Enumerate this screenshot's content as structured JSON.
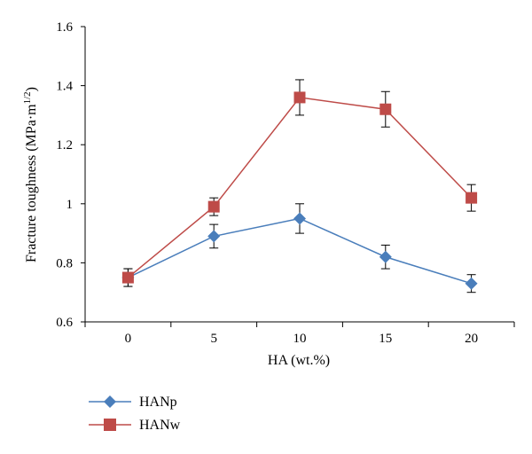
{
  "chart_data": {
    "type": "line",
    "xlabel": "HA (wt.%)",
    "ylabel_main": "Fracture toughness (MPa·m",
    "ylabel_sup": "1/2",
    "ylabel_close": ")",
    "x": [
      0,
      5,
      10,
      15,
      20
    ],
    "x_tick_labels": [
      "0",
      "5",
      "10",
      "15",
      "20"
    ],
    "ylim": [
      0.6,
      1.6
    ],
    "y_ticks": [
      0.6,
      0.8,
      1.0,
      1.2,
      1.4,
      1.6
    ],
    "y_tick_labels": [
      "0.6",
      "0.8",
      "1",
      "1.2",
      "1.4",
      "1.6"
    ],
    "grid": false,
    "legend_position": "bottom-left",
    "series": [
      {
        "name": "HANp",
        "marker": "diamond",
        "color": "#4a7ebb",
        "values": [
          0.75,
          0.89,
          0.95,
          0.82,
          0.73
        ],
        "errors": [
          0.03,
          0.04,
          0.05,
          0.04,
          0.03
        ]
      },
      {
        "name": "HANw",
        "marker": "square",
        "color": "#be4b48",
        "values": [
          0.75,
          0.99,
          1.36,
          1.32,
          1.02
        ],
        "errors": [
          0.03,
          0.03,
          0.06,
          0.06,
          0.045
        ]
      }
    ]
  }
}
